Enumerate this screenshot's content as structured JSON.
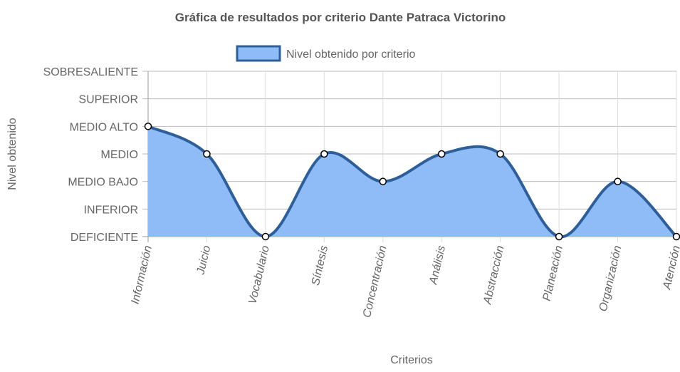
{
  "chart_data": {
    "type": "area",
    "title": "Gráfica de resultados por criterio Dante Patraca Victorino",
    "xlabel": "Criterios",
    "ylabel": "Nivel obtenido",
    "categories": [
      "Información",
      "Juicio",
      "Vocabulario",
      "Síntesis",
      "Concentración",
      "Análisis",
      "Abstracción",
      "Planeación",
      "Organización",
      "Atención"
    ],
    "y_levels": [
      "DEFICIENTE",
      "INFERIOR",
      "MEDIO BAJO",
      "MEDIO",
      "MEDIO ALTO",
      "SUPERIOR",
      "SOBRESALIENTE"
    ],
    "series": [
      {
        "name": "Nivel obtenido por criterio",
        "values": [
          4,
          3,
          0,
          3,
          2,
          3,
          3,
          0,
          2,
          0
        ]
      }
    ],
    "ylim": [
      0,
      6
    ],
    "grid": true,
    "legend": "top-center",
    "colors": {
      "fill": "#8fbcf7",
      "line": "#2f5f98",
      "grid": "#dddddd",
      "axis": "#999999",
      "point_fill": "#ffffff",
      "point_stroke": "#000000"
    }
  }
}
